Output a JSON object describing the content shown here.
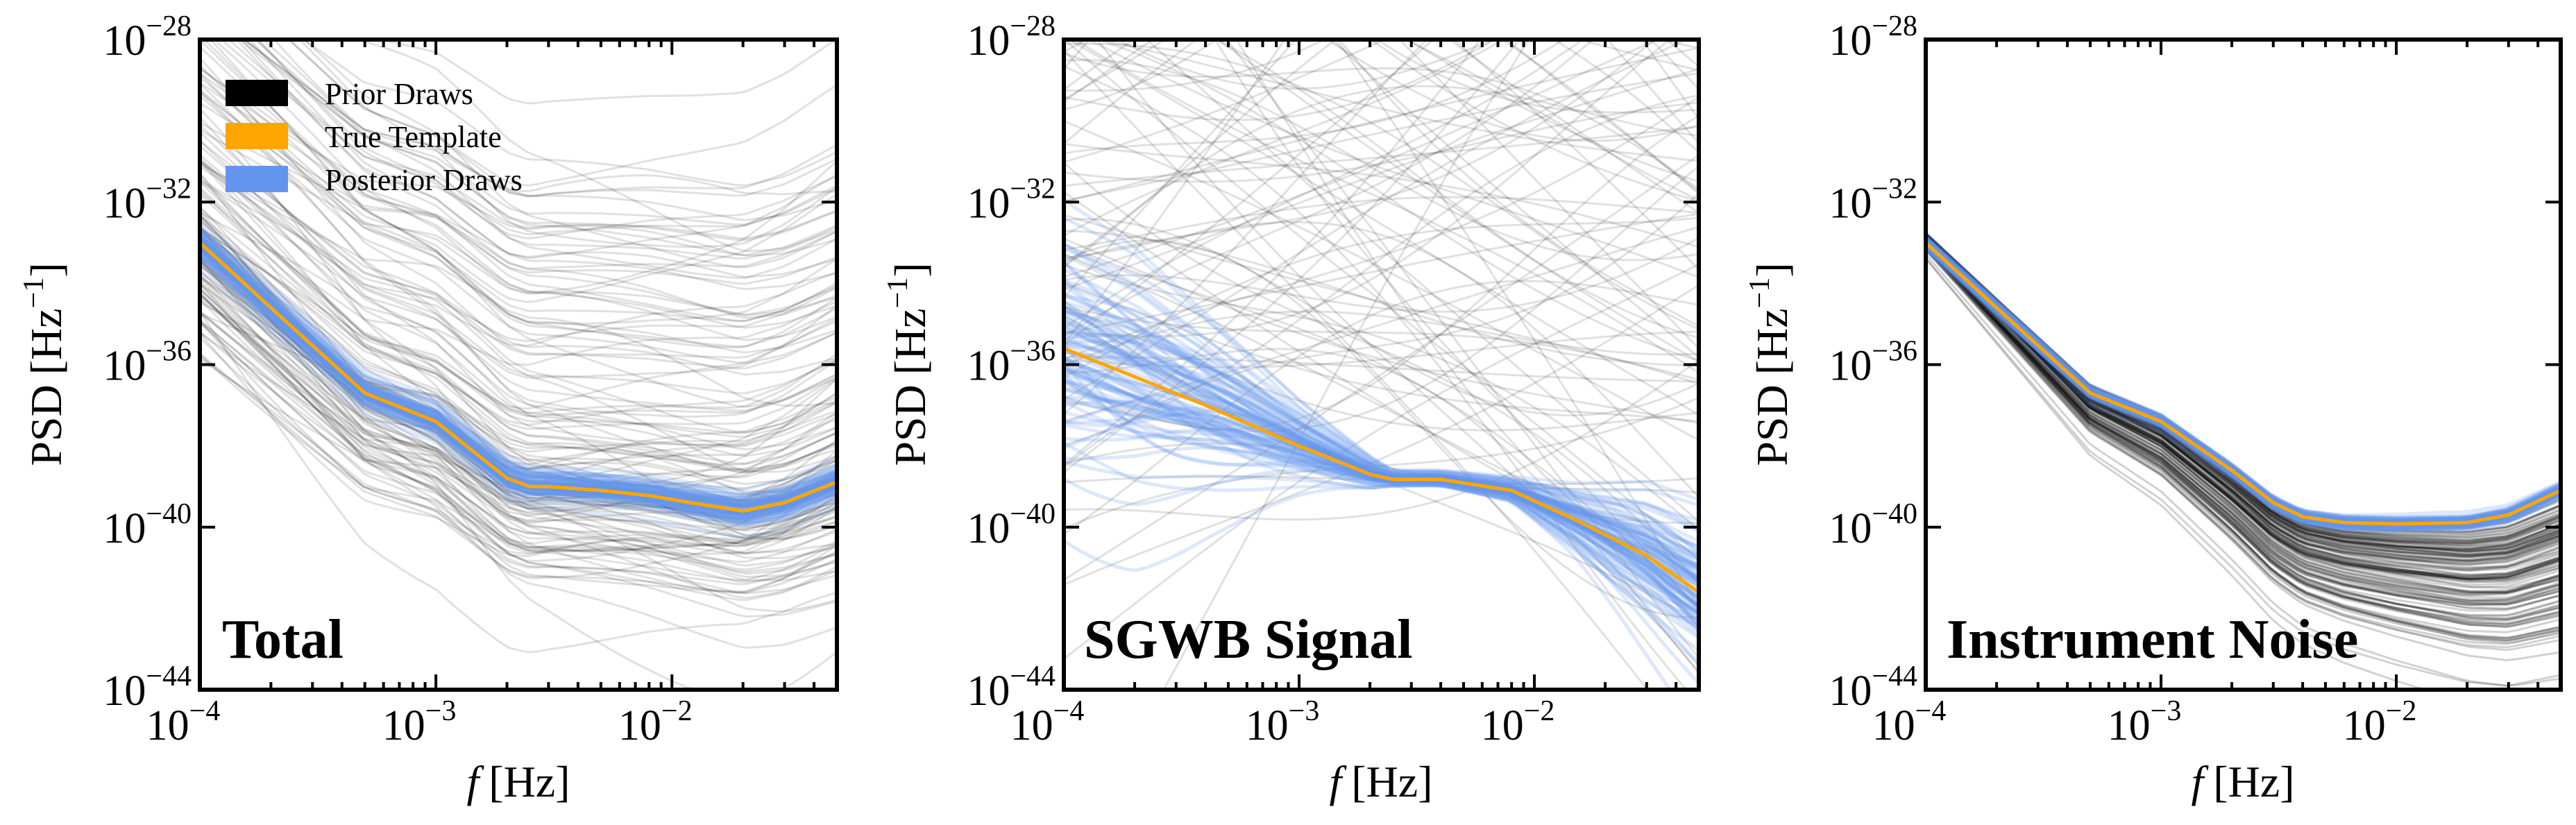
{
  "figure": {
    "legend": [
      {
        "label": "Prior Draws",
        "color": "#000000"
      },
      {
        "label": "True Template",
        "color": "#ffa500"
      },
      {
        "label": "Posterior Draws",
        "color": "#6495ed"
      }
    ]
  },
  "chart_data": [
    {
      "type": "line",
      "panel_label": "Total",
      "xlabel_italic": "f",
      "xlabel_unit": "[Hz]",
      "ylabel": "PSD",
      "ylabel_unit_base": "[Hz",
      "ylabel_unit_exp": "−1",
      "ylabel_unit_close": "]",
      "xscale": "log",
      "yscale": "log",
      "xlim": [
        0.0001,
        0.05
      ],
      "ylim": [
        1e-44,
        1e-28
      ],
      "xticks": [
        {
          "base": "10",
          "exp": "−4",
          "value": -4
        },
        {
          "base": "10",
          "exp": "−3",
          "value": -3
        },
        {
          "base": "10",
          "exp": "−2",
          "value": -2
        }
      ],
      "yticks": [
        {
          "base": "10",
          "exp": "−44",
          "value": -44
        },
        {
          "base": "10",
          "exp": "−40",
          "value": -40
        },
        {
          "base": "10",
          "exp": "−36",
          "value": -36
        },
        {
          "base": "10",
          "exp": "−32",
          "value": -32
        },
        {
          "base": "10",
          "exp": "−28",
          "value": -28
        }
      ],
      "legend_location": "upper left",
      "series": [
        {
          "name": "True Template",
          "color": "#ffa500",
          "x": [
            0.0001,
            0.0002,
            0.0005,
            0.001,
            0.002,
            0.0025,
            0.003,
            0.005,
            0.008,
            0.012,
            0.02,
            0.03,
            0.05
          ],
          "y": [
            1e-33,
            2.5e-35,
            2e-37,
            4e-38,
            1.6e-39,
            1e-39,
            1e-39,
            8e-40,
            6e-40,
            4e-40,
            2.5e-40,
            4e-40,
            1.3e-39
          ]
        },
        {
          "name": "Posterior Draws",
          "color": "#6495ed",
          "spread_dex": 0.2,
          "x": [
            0.0001,
            0.0002,
            0.0005,
            0.001,
            0.002,
            0.0025,
            0.003,
            0.005,
            0.008,
            0.012,
            0.02,
            0.03,
            0.05
          ],
          "y": [
            1e-33,
            2.5e-35,
            2e-37,
            4e-38,
            1.6e-39,
            1e-39,
            1e-39,
            8e-40,
            6e-40,
            4e-40,
            2.5e-40,
            4e-40,
            1.3e-39
          ]
        }
      ]
    },
    {
      "type": "line",
      "panel_label": "SGWB Signal",
      "xlabel_italic": "f",
      "xlabel_unit": "[Hz]",
      "ylabel": "PSD",
      "ylabel_unit_base": "[Hz",
      "ylabel_unit_exp": "−1",
      "ylabel_unit_close": "]",
      "xscale": "log",
      "yscale": "log",
      "xlim": [
        0.0001,
        0.05
      ],
      "ylim": [
        1e-44,
        1e-28
      ],
      "xticks": [
        {
          "base": "10",
          "exp": "−4",
          "value": -4
        },
        {
          "base": "10",
          "exp": "−3",
          "value": -3
        },
        {
          "base": "10",
          "exp": "−2",
          "value": -2
        }
      ],
      "yticks": [
        {
          "base": "10",
          "exp": "−44",
          "value": -44
        },
        {
          "base": "10",
          "exp": "−40",
          "value": -40
        },
        {
          "base": "10",
          "exp": "−36",
          "value": -36
        },
        {
          "base": "10",
          "exp": "−32",
          "value": -32
        },
        {
          "base": "10",
          "exp": "−28",
          "value": -28
        }
      ],
      "series": [
        {
          "name": "True Template",
          "color": "#ffa500",
          "x": [
            0.0001,
            0.0002,
            0.0004,
            0.001,
            0.002,
            0.0025,
            0.004,
            0.008,
            0.015,
            0.03,
            0.05
          ],
          "y": [
            2.5e-36,
            5e-37,
            1e-37,
            1e-38,
            2e-39,
            1.5e-39,
            1.5e-39,
            8e-40,
            1.5e-40,
            2e-41,
            2.5e-42
          ]
        },
        {
          "name": "Posterior Draws",
          "color": "#6495ed",
          "spread_dex": [
            1.6,
            1.4,
            1.0,
            0.5,
            0.2,
            0.1,
            0.1,
            0.15,
            0.4,
            0.8,
            1.0
          ],
          "x": [
            0.0001,
            0.0002,
            0.0004,
            0.001,
            0.002,
            0.0025,
            0.004,
            0.008,
            0.015,
            0.03,
            0.05
          ],
          "y": [
            2.5e-36,
            5e-37,
            1e-37,
            1e-38,
            2e-39,
            1.5e-39,
            1.5e-39,
            8e-40,
            1.5e-40,
            2e-41,
            2.5e-42
          ]
        }
      ]
    },
    {
      "type": "line",
      "panel_label": "Instrument Noise",
      "xlabel_italic": "f",
      "xlabel_unit": "[Hz]",
      "ylabel": "PSD",
      "ylabel_unit_base": "[Hz",
      "ylabel_unit_exp": "−1",
      "ylabel_unit_close": "]",
      "xscale": "log",
      "yscale": "log",
      "xlim": [
        0.0001,
        0.05
      ],
      "ylim": [
        1e-44,
        1e-28
      ],
      "xticks": [
        {
          "base": "10",
          "exp": "−4",
          "value": -4
        },
        {
          "base": "10",
          "exp": "−3",
          "value": -3
        },
        {
          "base": "10",
          "exp": "−2",
          "value": -2
        }
      ],
      "yticks": [
        {
          "base": "10",
          "exp": "−44",
          "value": -44
        },
        {
          "base": "10",
          "exp": "−40",
          "value": -40
        },
        {
          "base": "10",
          "exp": "−36",
          "value": -36
        },
        {
          "base": "10",
          "exp": "−32",
          "value": -32
        },
        {
          "base": "10",
          "exp": "−28",
          "value": -28
        }
      ],
      "series": [
        {
          "name": "True Template",
          "color": "#ffa500",
          "x": [
            0.0001,
            0.0002,
            0.0005,
            0.001,
            0.002,
            0.003,
            0.004,
            0.006,
            0.01,
            0.02,
            0.03,
            0.05
          ],
          "y": [
            1e-33,
            2.5e-35,
            2e-37,
            4e-38,
            2.5e-39,
            4e-40,
            1.8e-40,
            1.3e-40,
            1.2e-40,
            1.3e-40,
            2e-40,
            8e-40
          ]
        },
        {
          "name": "Posterior Draws",
          "color": "#6495ed",
          "spread_dex": 0.1,
          "x": [
            0.0001,
            0.0002,
            0.0005,
            0.001,
            0.002,
            0.003,
            0.004,
            0.006,
            0.01,
            0.02,
            0.03,
            0.05
          ],
          "y": [
            1e-33,
            2.5e-35,
            2e-37,
            4e-38,
            2.5e-39,
            4e-40,
            1.8e-40,
            1.3e-40,
            1.2e-40,
            1.3e-40,
            2e-40,
            8e-40
          ]
        }
      ]
    }
  ]
}
